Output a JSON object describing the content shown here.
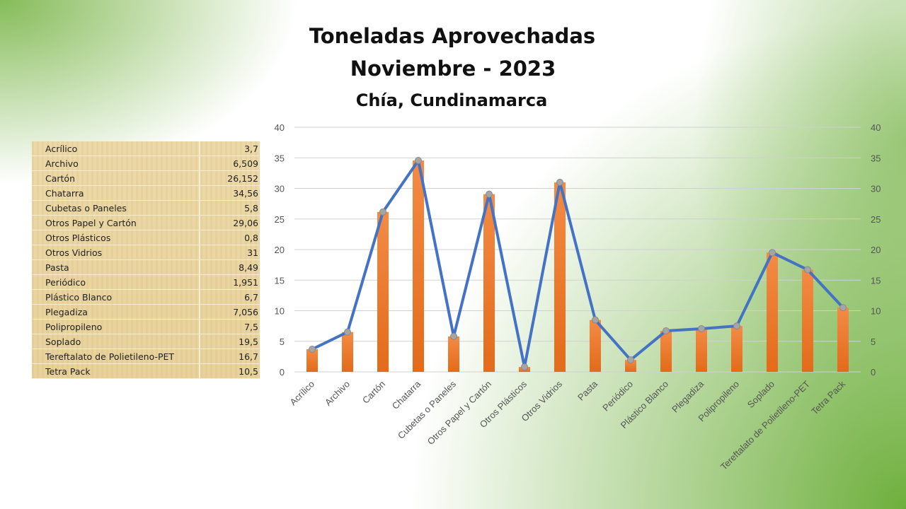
{
  "chart_data": {
    "type": "bar",
    "title": "Toneladas Aprovechadas",
    "subtitle": "Noviembre - 2023",
    "location": "Chía, Cundinamarca",
    "categories": [
      "Acrílico",
      "Archivo",
      "Cartón",
      "Chatarra",
      "Cubetas o Paneles",
      "Otros Papel y Cartón",
      "Otros Plásticos",
      "Otros Vidrios",
      "Pasta",
      "Periódico",
      "Plástico Blanco",
      "Plegadiza",
      "Polipropileno",
      "Soplado",
      "Tereftalato de Polietileno-PET",
      "Tetra Pack"
    ],
    "values": [
      3.7,
      6.509,
      26.152,
      34.56,
      5.8,
      29.06,
      0.8,
      31,
      8.49,
      1.951,
      6.7,
      7.056,
      7.5,
      19.5,
      16.7,
      10.5
    ],
    "series": [
      {
        "name": "bars",
        "type": "bar",
        "color": "#ed7d31"
      },
      {
        "name": "line",
        "type": "line",
        "color": "#4472c4"
      }
    ],
    "ylim": [
      0,
      40
    ],
    "yticks": [
      "0",
      "5",
      "10",
      "15",
      "20",
      "25",
      "30",
      "35",
      "40"
    ],
    "secondary_yticks": [
      "0",
      "5",
      "10",
      "15",
      "20",
      "25",
      "30",
      "35",
      "40"
    ],
    "grid": true
  },
  "table": {
    "rows": [
      {
        "label": "Acrílico",
        "value": "3,7"
      },
      {
        "label": "Archivo",
        "value": "6,509"
      },
      {
        "label": "Cartón",
        "value": "26,152"
      },
      {
        "label": "Chatarra",
        "value": "34,56"
      },
      {
        "label": "Cubetas o Paneles",
        "value": "5,8"
      },
      {
        "label": "Otros Papel y Cartón",
        "value": "29,06"
      },
      {
        "label": "Otros Plásticos",
        "value": "0,8"
      },
      {
        "label": "Otros Vidrios",
        "value": "31"
      },
      {
        "label": "Pasta",
        "value": "8,49"
      },
      {
        "label": "Periódico",
        "value": "1,951"
      },
      {
        "label": "Plástico Blanco",
        "value": "6,7"
      },
      {
        "label": "Plegadiza",
        "value": "7,056"
      },
      {
        "label": "Polipropileno",
        "value": "7,5"
      },
      {
        "label": "Soplado",
        "value": "19,5"
      },
      {
        "label": "Tereftalato de Polietileno-PET",
        "value": "16,7"
      },
      {
        "label": "Tetra Pack",
        "value": "10,5"
      }
    ]
  }
}
